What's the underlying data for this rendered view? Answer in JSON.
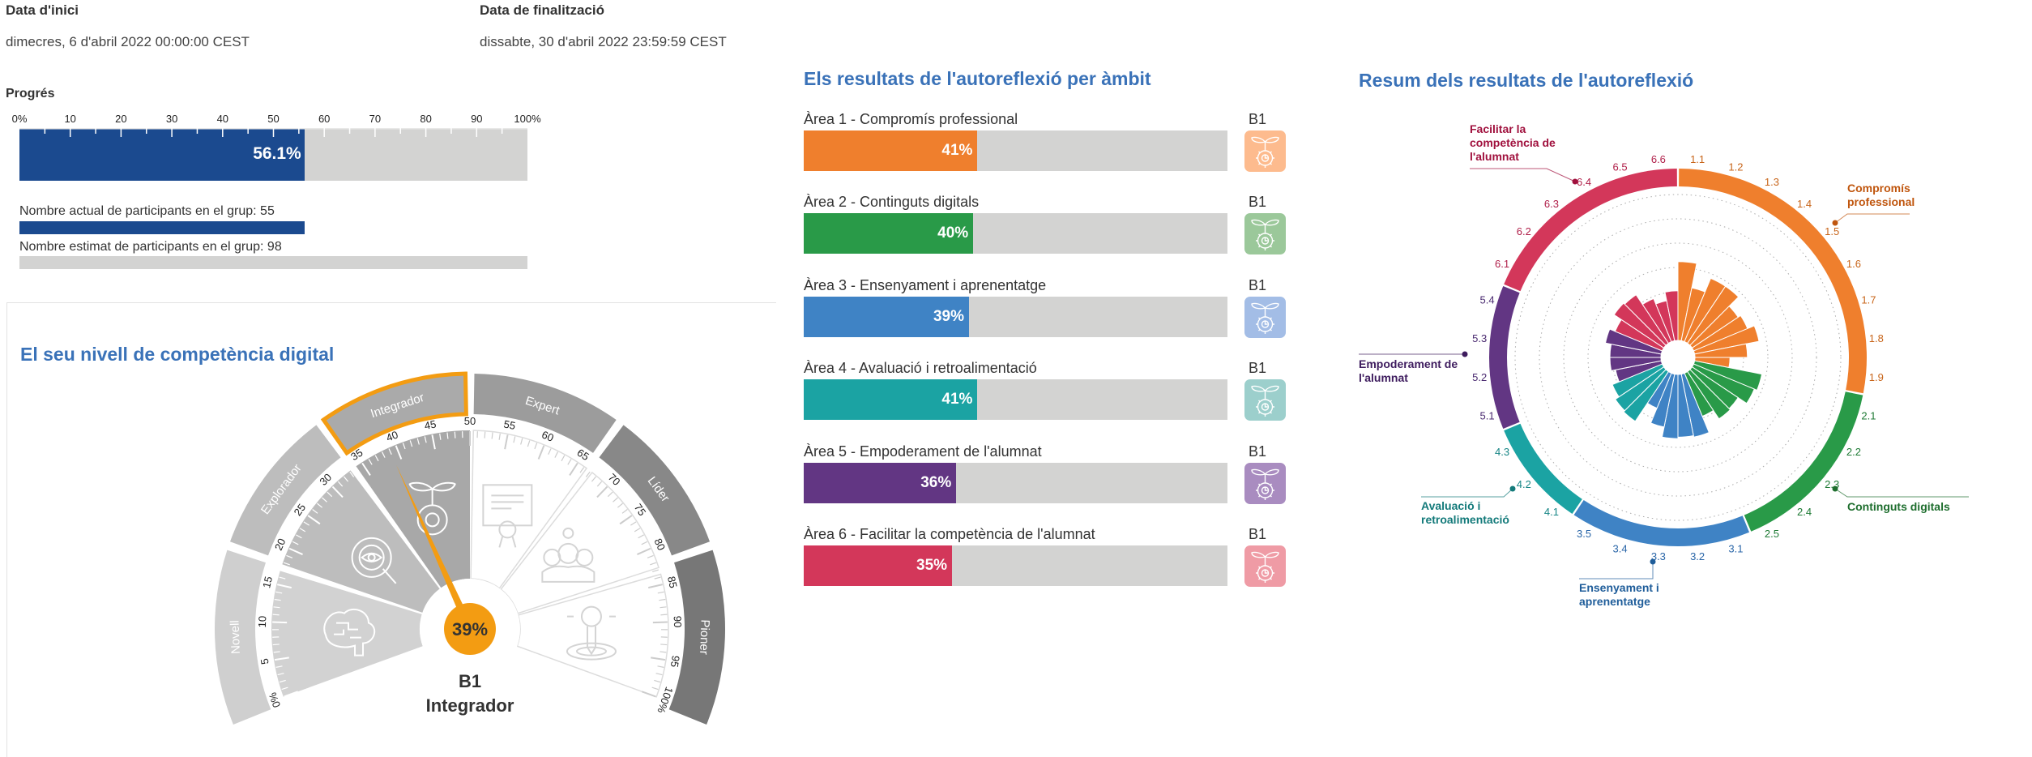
{
  "dates": {
    "start_label": "Data d'inici",
    "start_value": "dimecres, 6 d'abril 2022 00:00:00 CEST",
    "end_label": "Data de finalització",
    "end_value": "dissabte, 30 d'abril 2022 23:59:59 CEST"
  },
  "progress": {
    "title": "Progrés",
    "ticks": [
      "0%",
      "10",
      "20",
      "30",
      "40",
      "50",
      "60",
      "70",
      "80",
      "90",
      "100%"
    ],
    "percent": 56.1,
    "percent_label": "56.1%",
    "current_label": "Nombre actual de participants en el grup: 55",
    "current": 55,
    "estimated_label": "Nombre estimat de participants en el grup: 98",
    "estimated": 98,
    "colors": {
      "fill": "#1b4a8f",
      "track": "#d3d3d2"
    }
  },
  "gauge": {
    "title": "El seu nivell de competència digital",
    "value": 39,
    "value_label": "39%",
    "level_code": "B1",
    "level_name": "Integrador",
    "active_level": "Integrador",
    "levels": [
      {
        "name": "Novell",
        "color": "#cfcfcf"
      },
      {
        "name": "Explorador",
        "color": "#bdbdbd"
      },
      {
        "name": "Integrador",
        "color": "#aaaaaa"
      },
      {
        "name": "Expert",
        "color": "#9c9c9c"
      },
      {
        "name": "Líder",
        "color": "#888888"
      },
      {
        "name": "Pioner",
        "color": "#777777"
      }
    ],
    "tick_labels": [
      "0%",
      "5",
      "10",
      "15",
      "20",
      "25",
      "30",
      "35",
      "40",
      "45",
      "50",
      "55",
      "60",
      "65",
      "70",
      "75",
      "80",
      "85",
      "90",
      "95",
      "100%"
    ],
    "colors": {
      "needle": "#f39c12",
      "highlight": "#f39c12"
    }
  },
  "areas": {
    "title": "Els resultats de l'autoreflexió per àmbit",
    "items": [
      {
        "label": "Àrea 1 - Compromís professional",
        "percent": 41,
        "percent_label": "41%",
        "level": "B1",
        "color": "#ef7f2d",
        "icon_color": "#fdbb8e",
        "icon": "plant-gear-icon"
      },
      {
        "label": "Àrea 2 - Continguts digitals",
        "percent": 40,
        "percent_label": "40%",
        "level": "B1",
        "color": "#299a48",
        "icon_color": "#9bc89a",
        "icon": "plant-gear-icon"
      },
      {
        "label": "Àrea 3 - Ensenyament i aprenentatge",
        "percent": 39,
        "percent_label": "39%",
        "level": "B1",
        "color": "#3f83c5",
        "icon_color": "#a3bde6",
        "icon": "plant-gear-icon"
      },
      {
        "label": "Àrea 4 - Avaluació i retroalimentació",
        "percent": 41,
        "percent_label": "41%",
        "level": "B1",
        "color": "#1ba3a3",
        "icon_color": "#9ccfcc",
        "icon": "plant-gear-icon"
      },
      {
        "label": "Àrea 5 - Empoderament de l'alumnat",
        "percent": 36,
        "percent_label": "36%",
        "level": "B1",
        "color": "#623683",
        "icon_color": "#a98cc0",
        "icon": "plant-gear-icon"
      },
      {
        "label": "Àrea 6 - Facilitar la competència de l'alumnat",
        "percent": 35,
        "percent_label": "35%",
        "level": "B1",
        "color": "#d3375a",
        "icon_color": "#ef9ba5",
        "icon": "plant-gear-icon"
      }
    ]
  },
  "summary": {
    "title": "Resum dels resultats de l'autoreflexió",
    "callouts": [
      {
        "lines": [
          "Facilitar la",
          "competència de",
          "l'alumnat"
        ],
        "color": "#a0103d"
      },
      {
        "lines": [
          "Compromís",
          "professional"
        ],
        "color": "#c0560e"
      },
      {
        "lines": [
          "Empoderament de",
          "l'alumnat"
        ],
        "color": "#3e1c5e"
      },
      {
        "lines": [
          "Avaluació i",
          "retroalimentació"
        ],
        "color": "#137a7a"
      },
      {
        "lines": [
          "Ensenyament i",
          "aprenentatge"
        ],
        "color": "#1f5d9a"
      },
      {
        "lines": [
          "Continguts digitals"
        ],
        "color": "#1e6e2e"
      }
    ]
  },
  "chart_data": {
    "type": "polar-bar",
    "title": "Resum dels resultats de l'autoreflexió",
    "range": [
      0,
      100
    ],
    "grid": true,
    "groups": [
      {
        "name": "Compromís professional",
        "color": "#ef7f2d",
        "label_color": "#c8651a",
        "categories": [
          "1.1",
          "1.2",
          "1.3",
          "1.4",
          "1.5",
          "1.6",
          "1.7",
          "1.8",
          "1.9"
        ],
        "values": [
          54,
          37,
          47,
          47,
          38,
          40,
          45,
          36,
          24
        ]
      },
      {
        "name": "Continguts digitals",
        "color": "#299a48",
        "label_color": "#1e7a34",
        "categories": [
          "2.1",
          "2.2",
          "2.3",
          "2.4",
          "2.5"
        ],
        "values": [
          47,
          45,
          38,
          39,
          32
        ]
      },
      {
        "name": "Ensenyament i aprenentatge",
        "color": "#3f83c5",
        "label_color": "#2a66a8",
        "categories": [
          "3.1",
          "3.2",
          "3.3",
          "3.4",
          "3.5"
        ],
        "values": [
          44,
          43,
          44,
          37,
          26
        ]
      },
      {
        "name": "Avaluació i retroalimentació",
        "color": "#1ba3a3",
        "label_color": "#168585",
        "categories": [
          "4.1",
          "4.2",
          "4.3"
        ],
        "values": [
          41,
          40,
          37
        ]
      },
      {
        "name": "Empoderament de l'alumnat",
        "color": "#623683",
        "label_color": "#4a2a70",
        "categories": [
          "5.1",
          "5.2",
          "5.3",
          "5.4"
        ],
        "values": [
          32,
          35,
          35,
          39
        ]
      },
      {
        "name": "Facilitar la competència de l'alumnat",
        "color": "#d3375a",
        "label_color": "#b0204a",
        "categories": [
          "6.1",
          "6.2",
          "6.3",
          "6.4",
          "6.5",
          "6.6"
        ],
        "values": [
          35,
          41,
          40,
          32,
          28,
          34
        ]
      }
    ]
  }
}
